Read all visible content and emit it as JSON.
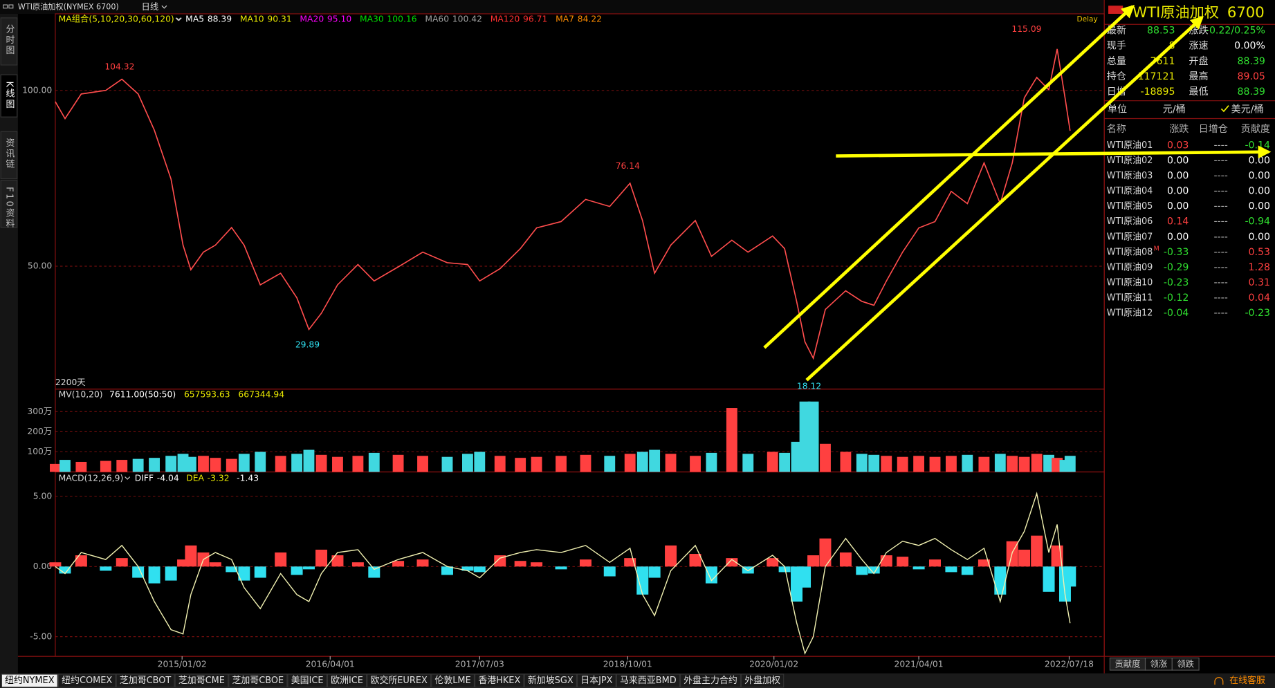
{
  "header": {
    "title": "WTI原油加权(NYMEX 6700)",
    "period": "日线"
  },
  "sidebar_tabs": [
    "分时图",
    "K线图",
    "资讯链",
    "F10资料"
  ],
  "chart_data": [
    {
      "type": "line",
      "legend_title": "MA组合(5,10,20,30,60,120)",
      "indicators": [
        {
          "name": "MA5",
          "value": 88.39,
          "color": "#ffffff"
        },
        {
          "name": "MA10",
          "value": 90.31,
          "color": "#e8e800"
        },
        {
          "name": "MA20",
          "value": "95.10",
          "color": "#ff00ff"
        },
        {
          "name": "MA30",
          "value": 100.16,
          "color": "#00e000"
        },
        {
          "name": "MA60",
          "value": 100.42,
          "color": "#a0a0a0"
        },
        {
          "name": "MA120",
          "value": 96.71,
          "color": "#ff3030"
        },
        {
          "name": "MA7",
          "value": 84.22,
          "color": "#ff8c00"
        }
      ],
      "badge": "Delay",
      "range_label": "2200天",
      "color": "#ff4d4d",
      "x": [
        0,
        21,
        56,
        109,
        144,
        179,
        214,
        250,
        276,
        293,
        320,
        346,
        381,
        408,
        443,
        487,
        522,
        548,
        575,
        610,
        654,
        689,
        741,
        794,
        847,
        891,
        917,
        961,
        1005,
        1040,
        1093,
        1146,
        1198,
        1242,
        1269,
        1295,
        1330,
        1383,
        1418,
        1462,
        1497,
        1550,
        1576,
        1602,
        1620,
        1638,
        1664,
        1708,
        1743,
        1769,
        1796,
        1831,
        1866,
        1901,
        1936,
        1971,
        2007,
        2042,
        2068,
        2094,
        2121,
        2147,
        2165,
        2182,
        2193
      ],
      "values": [
        96.8,
        92,
        99,
        100,
        103.2,
        99,
        88.7,
        74.8,
        56,
        49,
        54,
        56,
        61,
        56,
        44.7,
        48,
        41,
        32,
        36.6,
        44.7,
        50.5,
        45.8,
        49.8,
        54,
        51,
        50.5,
        45.8,
        49.3,
        55,
        60.9,
        62.7,
        69,
        67,
        73.6,
        63,
        48,
        56,
        63,
        52.8,
        57.4,
        54,
        58.6,
        55,
        40,
        28.5,
        23.8,
        37.7,
        43,
        40,
        38.9,
        45.8,
        54,
        60.9,
        62.7,
        71.3,
        67.8,
        79.4,
        67.8,
        79.4,
        97.9,
        103.7,
        100.2,
        111.8,
        97.9,
        88.53
      ],
      "xlim": [
        0,
        2200
      ],
      "ylim": [
        15.05,
        121.8
      ],
      "yticks": [
        {
          "value": 50,
          "label": "50.00"
        },
        {
          "value": 100,
          "label": "100.00"
        }
      ],
      "annotations": [
        {
          "x": 139,
          "value": 104.32
        },
        {
          "x": 1237,
          "value": 76.14
        },
        {
          "x": 545,
          "value": 29.89
        },
        {
          "x": 2099,
          "value": 115.09
        },
        {
          "x": 1629,
          "value": 18.12
        }
      ],
      "high_color": "#ff4040",
      "low_color": "#30e0f0"
    },
    {
      "type": "bar",
      "legend_title": "MV(10,20)",
      "legend_values": [
        "7611.00(50:50)",
        657593.63,
        667344.94
      ],
      "up_color": "#ff4040",
      "down_color": "#40d8e0",
      "x": [
        0,
        21,
        56,
        109,
        144,
        179,
        214,
        250,
        276,
        293,
        320,
        346,
        381,
        408,
        443,
        487,
        522,
        548,
        575,
        610,
        654,
        689,
        741,
        794,
        847,
        891,
        917,
        961,
        1005,
        1040,
        1093,
        1146,
        1198,
        1242,
        1269,
        1295,
        1330,
        1383,
        1418,
        1462,
        1497,
        1550,
        1576,
        1602,
        1620,
        1638,
        1664,
        1708,
        1743,
        1769,
        1796,
        1831,
        1866,
        1901,
        1936,
        1971,
        2007,
        2042,
        2068,
        2094,
        2121,
        2147,
        2165,
        2182,
        2193
      ],
      "values": [
        400000,
        600000,
        500000,
        550000,
        600000,
        650000,
        700000,
        800000,
        900000,
        750000,
        800000,
        700000,
        650000,
        900000,
        1000000,
        800000,
        900000,
        1100000,
        850000,
        750000,
        800000,
        950000,
        850000,
        800000,
        750000,
        900000,
        1000000,
        800000,
        700000,
        750000,
        800000,
        850000,
        800000,
        900000,
        1000000,
        1100000,
        900000,
        800000,
        950000,
        3180000,
        900000,
        1000000,
        950000,
        1500000,
        3500000,
        3500000,
        1400000,
        1000000,
        900000,
        850000,
        800000,
        750000,
        800000,
        750000,
        800000,
        850000,
        750000,
        900000,
        800000,
        750000,
        900000,
        850000,
        700000,
        600000,
        800000
      ],
      "xlim": [
        0,
        2200
      ],
      "ylim": [
        0,
        4120000
      ],
      "yticks": [
        {
          "value": 1000000,
          "label": "100万"
        },
        {
          "value": 2000000,
          "label": "200万"
        },
        {
          "value": 3000000,
          "label": "300万"
        }
      ]
    },
    {
      "type": "line",
      "legend_title": "MACD(12,26,9)",
      "legend": [
        {
          "name": "DIFF",
          "value": -4.04
        },
        {
          "name": "DEA",
          "value": -3.32
        },
        {
          "value": -1.43
        }
      ],
      "x": [
        0,
        21,
        56,
        109,
        144,
        179,
        214,
        250,
        276,
        293,
        320,
        346,
        381,
        408,
        443,
        487,
        522,
        548,
        575,
        610,
        654,
        689,
        741,
        794,
        847,
        891,
        917,
        961,
        1005,
        1040,
        1093,
        1146,
        1198,
        1242,
        1269,
        1295,
        1330,
        1383,
        1418,
        1462,
        1497,
        1550,
        1576,
        1602,
        1620,
        1638,
        1664,
        1708,
        1743,
        1769,
        1796,
        1831,
        1866,
        1901,
        1936,
        1971,
        2007,
        2042,
        2068,
        2094,
        2121,
        2147,
        2165,
        2182,
        2193
      ],
      "series": [
        {
          "name": "DIFF",
          "color": "#f0f0b0",
          "values": [
            0,
            -0.5,
            1,
            0.5,
            1.5,
            0,
            -2.5,
            -4.5,
            -4.8,
            -2,
            0.5,
            1,
            0.5,
            -1.5,
            -3,
            -0.5,
            -2,
            -2.5,
            -0.5,
            1,
            1.2,
            -0.2,
            0.5,
            1,
            0,
            -0.3,
            -0.8,
            0.6,
            1,
            1.2,
            1,
            1.5,
            0.3,
            1.3,
            -2,
            -3.5,
            -0.3,
            1.5,
            -1,
            0.5,
            -0.3,
            0.8,
            0,
            -4,
            -6.2,
            -5,
            0,
            2,
            0.5,
            -0.5,
            1,
            1.8,
            1.5,
            2,
            1.2,
            0.5,
            1.3,
            -2.5,
            1,
            2.5,
            5.2,
            1,
            3,
            -2,
            -4.04
          ]
        }
      ],
      "histogram": [
        0.3,
        -0.5,
        0.8,
        -0.3,
        0.6,
        -0.8,
        -1.2,
        -1,
        0.5,
        1.5,
        1,
        0.3,
        -0.4,
        -1,
        -0.8,
        1,
        -0.6,
        -0.2,
        1.2,
        0.8,
        0.3,
        -0.8,
        0.4,
        0.5,
        -0.6,
        -0.3,
        -0.4,
        0.8,
        0.4,
        0.3,
        -0.2,
        0.5,
        -0.7,
        0.6,
        -2,
        -0.8,
        1.5,
        0.9,
        -1.2,
        0.6,
        -0.5,
        0.6,
        -0.4,
        -2.5,
        -1.5,
        0.8,
        2,
        1,
        -0.6,
        -0.5,
        0.8,
        0.7,
        -0.2,
        0.5,
        -0.4,
        -0.6,
        0.5,
        -2,
        1.8,
        1.2,
        2.2,
        -1.8,
        1.5,
        -2.5,
        -1.43
      ],
      "up_color": "#ff4040",
      "down_color": "#30e0f0",
      "xlim": [
        0,
        2200
      ],
      "ylim": [
        -6.4,
        6.74
      ],
      "yticks": [
        {
          "value": -5,
          "label": "-5.00"
        },
        {
          "value": 0,
          "label": "0.00"
        },
        {
          "value": 5,
          "label": "5.00"
        }
      ],
      "xticks": [
        {
          "value": 274,
          "label": "2015/01/02"
        },
        {
          "value": 594,
          "label": "2016/04/01"
        },
        {
          "value": 917,
          "label": "2017/07/03"
        },
        {
          "value": 1237,
          "label": "2018/10/01"
        },
        {
          "value": 1553,
          "label": "2020/01/02"
        },
        {
          "value": 1866,
          "label": "2021/04/01"
        },
        {
          "value": 2191,
          "label": "2022/07/18"
        }
      ]
    }
  ],
  "quote": {
    "title": "WTI原油加权",
    "code": "6700",
    "left": [
      {
        "label": "最新",
        "value": 88.53,
        "color": "#30e030"
      },
      {
        "label": "现手",
        "value": 8,
        "color": "#e8e800"
      },
      {
        "label": "总量",
        "value": 7611,
        "color": "#e8e800"
      },
      {
        "label": "持仓",
        "value": 117121,
        "color": "#e8e800"
      },
      {
        "label": "日增",
        "value": -18895,
        "color": "#e8e800"
      }
    ],
    "right": [
      {
        "label": "涨跌",
        "value": "-0.22/0.25%",
        "color": "#30e030"
      },
      {
        "label": "涨速",
        "value": "0.00%",
        "color": "#ffffff"
      },
      {
        "label": "开盘",
        "value": 88.39,
        "color": "#30e030"
      },
      {
        "label": "最高",
        "value": 89.05,
        "color": "#ff4040"
      },
      {
        "label": "最低",
        "value": 88.39,
        "color": "#30e030"
      }
    ],
    "unit_label": "单位",
    "units": [
      "元/桶",
      "美元/桶"
    ]
  },
  "constituents": {
    "columns": [
      "名称",
      "涨跌",
      "日增仓",
      "贡献度"
    ],
    "rows": [
      {
        "name": "WTI原油01",
        "change": "0.03",
        "oi": "----",
        "contribution": "-0.14"
      },
      {
        "name": "WTI原油02",
        "change": "0.00",
        "oi": "----",
        "contribution": "0.00"
      },
      {
        "name": "WTI原油03",
        "change": "0.00",
        "oi": "----",
        "contribution": "0.00"
      },
      {
        "name": "WTI原油04",
        "change": "0.00",
        "oi": "----",
        "contribution": "0.00"
      },
      {
        "name": "WTI原油05",
        "change": "0.00",
        "oi": "----",
        "contribution": "0.00"
      },
      {
        "name": "WTI原油06",
        "change": "0.14",
        "oi": "----",
        "contribution": "-0.94"
      },
      {
        "name": "WTI原油07",
        "change": "0.00",
        "oi": "----",
        "contribution": "0.00"
      },
      {
        "name": "WTI原油08",
        "tag": "M",
        "change": "-0.33",
        "oi": "----",
        "contribution": "0.53"
      },
      {
        "name": "WTI原油09",
        "change": "-0.29",
        "oi": "----",
        "contribution": "1.28"
      },
      {
        "name": "WTI原油10",
        "change": "-0.23",
        "oi": "----",
        "contribution": "0.31"
      },
      {
        "name": "WTI原油11",
        "change": "-0.12",
        "oi": "----",
        "contribution": "0.04"
      },
      {
        "name": "WTI原油12",
        "change": "-0.04",
        "oi": "----",
        "contribution": "-0.23"
      }
    ],
    "tabs": [
      "贡献度",
      "领涨",
      "领跌"
    ]
  },
  "footer": {
    "markets": [
      "纽约NYMEX",
      "纽约COMEX",
      "芝加哥CBOT",
      "芝加哥CME",
      "芝加哥CBOE",
      "美国ICE",
      "欧洲ICE",
      "欧交所EUREX",
      "伦敦LME",
      "香港HKEX",
      "新加坡SGX",
      "日本JPX",
      "马来西亚BMD",
      "外盘主力合约",
      "外盘加权"
    ],
    "service": "在线客服"
  }
}
